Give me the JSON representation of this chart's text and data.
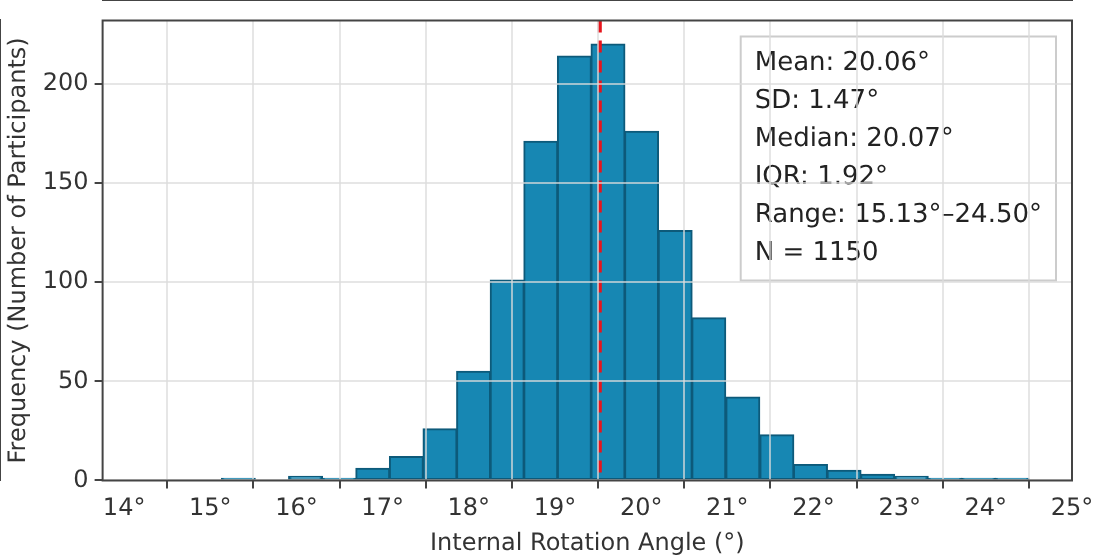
{
  "chart_data": {
    "type": "histogram",
    "xlabel": "Internal Rotation Angle (°)",
    "ylabel": "Frequency (Number of Participants)",
    "bins": [
      15.13,
      15.52,
      15.91,
      16.3,
      16.69,
      17.08,
      17.47,
      17.86,
      18.25,
      18.64,
      19.03,
      19.42,
      19.81,
      20.2,
      20.59,
      20.98,
      21.38,
      21.77,
      22.16,
      22.55,
      22.94,
      23.33,
      23.72,
      24.11,
      24.5
    ],
    "values": [
      1,
      0,
      2,
      1,
      6,
      12,
      26,
      55,
      101,
      171,
      214,
      220,
      176,
      126,
      82,
      42,
      23,
      8,
      5,
      3,
      2,
      1,
      1,
      1
    ],
    "color": "#1787b3",
    "xlim": [
      13.75,
      25
    ],
    "ylim": [
      0,
      232
    ],
    "xticks": [
      {
        "value": 14,
        "label": "14°"
      },
      {
        "value": 15,
        "label": "15°"
      },
      {
        "value": 16,
        "label": "16°"
      },
      {
        "value": 17,
        "label": "17°"
      },
      {
        "value": 18,
        "label": "18°"
      },
      {
        "value": 19,
        "label": "19°"
      },
      {
        "value": 20,
        "label": "20°"
      },
      {
        "value": 21,
        "label": "21°"
      },
      {
        "value": 22,
        "label": "22°"
      },
      {
        "value": 23,
        "label": "23°"
      },
      {
        "value": 24,
        "label": "24°"
      },
      {
        "value": 25,
        "label": "25°"
      }
    ],
    "yticks": [
      0,
      50,
      100,
      150,
      200
    ],
    "grid": true,
    "ref_lines": [
      {
        "axis": "x",
        "value": 19.52,
        "color": "#e8141c",
        "line_style": "dashed"
      }
    ],
    "annotations": [
      "Mean: 20.06°",
      "SD: 1.47°",
      "Median: 20.07°",
      "IQR: 1.92°",
      "Range: 15.13°–24.50°",
      "N = 1150"
    ]
  }
}
